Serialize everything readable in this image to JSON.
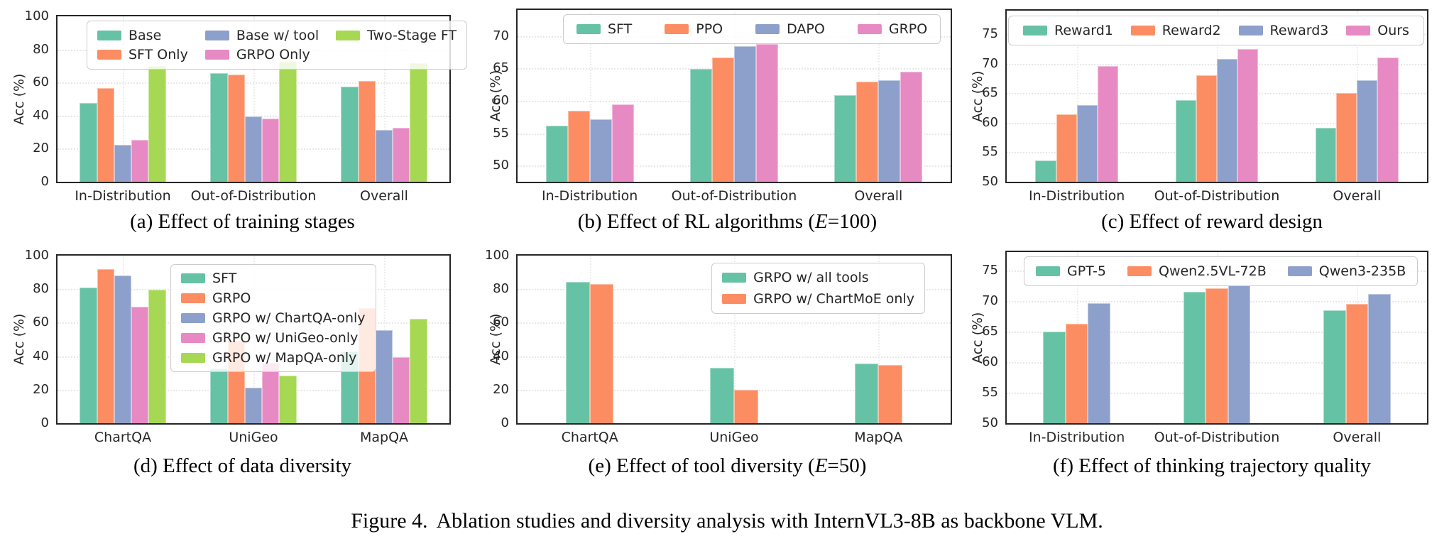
{
  "figure": {
    "label": "Figure 4.",
    "text": "Ablation studies and diversity analysis with InternVL3-8B as backbone VLM."
  },
  "palette": {
    "teal": "#66c2a5",
    "orange": "#fc8d62",
    "blue": "#8da0cb",
    "pink": "#e78ac3",
    "green": "#a6d854"
  },
  "chart_data": [
    {
      "id": "a",
      "type": "bar",
      "caption_parts": [
        {
          "text": "(a) Effect of training stages",
          "italic": false
        }
      ],
      "ylabel": "Acc (%)",
      "categories": [
        "In-Distribution",
        "Out-of-Distribution",
        "Overall"
      ],
      "series": [
        {
          "name": "Base",
          "color": "#66c2a5",
          "values": [
            47.5,
            65.5,
            57.5
          ]
        },
        {
          "name": "SFT Only",
          "color": "#fc8d62",
          "values": [
            56.5,
            65.0,
            61.0
          ]
        },
        {
          "name": "Base w/ tool",
          "color": "#8da0cb",
          "values": [
            22.5,
            39.5,
            31.5
          ]
        },
        {
          "name": "GRPO Only",
          "color": "#e78ac3",
          "values": [
            25.5,
            38.0,
            32.5
          ]
        },
        {
          "name": "Two-Stage FT",
          "color": "#a6d854",
          "values": [
            70.0,
            72.5,
            71.5
          ]
        }
      ],
      "ylim": [
        0,
        100
      ],
      "yticks": [
        0,
        20,
        40,
        60,
        80,
        100
      ],
      "grid": true,
      "legend_position": "upper left, 2 rows x 3 columns"
    },
    {
      "id": "b",
      "type": "bar",
      "caption_parts": [
        {
          "text": "(b) Effect of RL algorithms (",
          "italic": false
        },
        {
          "text": "E",
          "italic": true
        },
        {
          "text": "=100)",
          "italic": false
        }
      ],
      "ylabel": "Acc (%)",
      "categories": [
        "In-Distribution",
        "Out-of-Distribution",
        "Overall"
      ],
      "series": [
        {
          "name": "SFT",
          "color": "#66c2a5",
          "values": [
            56.2,
            64.9,
            60.9
          ]
        },
        {
          "name": "PPO",
          "color": "#fc8d62",
          "values": [
            58.4,
            66.7,
            62.9
          ]
        },
        {
          "name": "DAPO",
          "color": "#8da0cb",
          "values": [
            57.1,
            68.4,
            63.2
          ]
        },
        {
          "name": "GRPO",
          "color": "#e78ac3",
          "values": [
            59.4,
            68.8,
            64.5
          ]
        }
      ],
      "ylim": [
        47.5,
        74
      ],
      "yticks": [
        50,
        55,
        60,
        65,
        70
      ],
      "grid": true,
      "legend_position": "upper center, single row"
    },
    {
      "id": "c",
      "type": "bar",
      "caption_parts": [
        {
          "text": "(c) Effect of reward design",
          "italic": false
        }
      ],
      "ylabel": "Acc (%)",
      "categories": [
        "In-Distribution",
        "Out-of-Distribution",
        "Overall"
      ],
      "series": [
        {
          "name": "Reward1",
          "color": "#66c2a5",
          "values": [
            53.6,
            63.8,
            59.1
          ]
        },
        {
          "name": "Reward2",
          "color": "#fc8d62",
          "values": [
            61.4,
            68.0,
            65.0
          ]
        },
        {
          "name": "Reward3",
          "color": "#8da0cb",
          "values": [
            63.0,
            70.8,
            67.2
          ]
        },
        {
          "name": "Ours",
          "color": "#e78ac3",
          "values": [
            69.6,
            72.5,
            71.1
          ]
        }
      ],
      "ylim": [
        50,
        79
      ],
      "yticks": [
        50,
        55,
        60,
        65,
        70,
        75
      ],
      "grid": true,
      "legend_position": "upper, full width single row"
    },
    {
      "id": "d",
      "type": "bar",
      "caption_parts": [
        {
          "text": "(d) Effect of data diversity",
          "italic": false
        }
      ],
      "ylabel": "Acc (%)",
      "categories": [
        "ChartQA",
        "UniGeo",
        "MapQA"
      ],
      "series": [
        {
          "name": "SFT",
          "color": "#66c2a5",
          "values": [
            81.0,
            32.5,
            43.0
          ]
        },
        {
          "name": "GRPO",
          "color": "#fc8d62",
          "values": [
            92.0,
            49.0,
            68.5
          ]
        },
        {
          "name": "GRPO w/ ChartQA-only",
          "color": "#8da0cb",
          "values": [
            88.0,
            21.0,
            55.5
          ]
        },
        {
          "name": "GRPO w/ UniGeo-only",
          "color": "#e78ac3",
          "values": [
            69.5,
            36.0,
            39.5
          ]
        },
        {
          "name": "GRPO w/ MapQA-only",
          "color": "#a6d854",
          "values": [
            79.5,
            28.5,
            62.5
          ]
        }
      ],
      "ylim": [
        0,
        100
      ],
      "yticks": [
        0,
        20,
        40,
        60,
        80,
        100
      ],
      "grid": true,
      "legend_position": "upper center, vertical list"
    },
    {
      "id": "e",
      "type": "bar",
      "caption_parts": [
        {
          "text": "(e) Effect of tool diversity (",
          "italic": false
        },
        {
          "text": "E",
          "italic": true
        },
        {
          "text": "=50)",
          "italic": false
        }
      ],
      "ylabel": "Acc (%)",
      "categories": [
        "ChartQA",
        "UniGeo",
        "MapQA"
      ],
      "series": [
        {
          "name": "GRPO w/ all tools",
          "color": "#66c2a5",
          "values": [
            84.5,
            33.0,
            35.8
          ]
        },
        {
          "name": "GRPO w/ ChartMoE only",
          "color": "#fc8d62",
          "values": [
            83.0,
            20.0,
            34.7
          ]
        }
      ],
      "ylim": [
        0,
        100
      ],
      "yticks": [
        0,
        20,
        40,
        60,
        80,
        100
      ],
      "grid": true,
      "legend_position": "upper right, vertical list"
    },
    {
      "id": "f",
      "type": "bar",
      "caption_parts": [
        {
          "text": "(f) Effect of thinking trajectory quality",
          "italic": false
        }
      ],
      "ylabel": "Acc (%)",
      "categories": [
        "In-Distribution",
        "Out-of-Distribution",
        "Overall"
      ],
      "series": [
        {
          "name": "GPT-5",
          "color": "#66c2a5",
          "values": [
            65.0,
            71.5,
            68.5
          ]
        },
        {
          "name": "Qwen2.5VL-72B",
          "color": "#fc8d62",
          "values": [
            66.3,
            72.1,
            69.5
          ]
        },
        {
          "name": "Qwen3-235B",
          "color": "#8da0cb",
          "values": [
            69.6,
            72.5,
            71.1
          ]
        }
      ],
      "ylim": [
        50,
        78
      ],
      "yticks": [
        50,
        55,
        60,
        65,
        70,
        75
      ],
      "grid": true,
      "legend_position": "upper left, single row"
    }
  ]
}
